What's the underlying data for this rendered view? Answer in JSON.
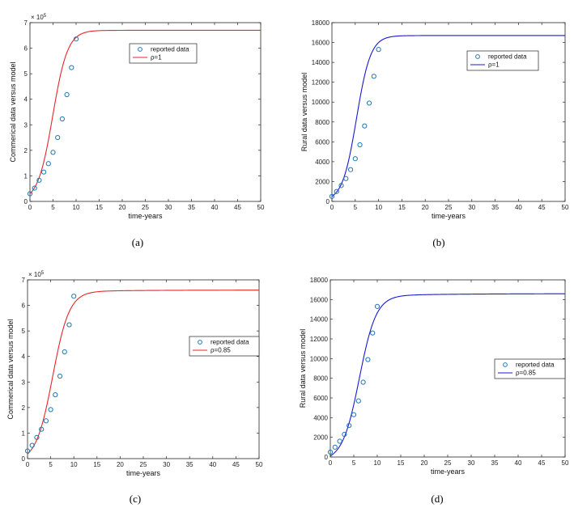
{
  "chart_data": [
    {
      "type": "line",
      "caption": "(a)",
      "xlabel": "time-years",
      "ylabel": "Commerical data versus model",
      "xlim": [
        0,
        50
      ],
      "ylim": [
        0,
        700000
      ],
      "xticks": [
        "0",
        "5",
        "10",
        "15",
        "20",
        "25",
        "30",
        "35",
        "40",
        "45",
        "50"
      ],
      "yticks": [
        "0",
        "1",
        "2",
        "3",
        "4",
        "5",
        "6",
        "7"
      ],
      "y_multiplier": "× 10",
      "y_multiplier_exp": "5",
      "legend_position": "upper-center",
      "series": [
        {
          "name": "reported data",
          "style": "markers",
          "color": "#1f77b4",
          "x": [
            0,
            1,
            2,
            3,
            4,
            5,
            6,
            7,
            8,
            9,
            10
          ],
          "y": [
            30000,
            52000,
            83000,
            115000,
            148000,
            192000,
            250000,
            323000,
            418000,
            524000,
            636000
          ]
        },
        {
          "name": "ρ=1",
          "style": "line",
          "color": "#e8262b",
          "model": {
            "L": 670000,
            "y0": 30000,
            "r": 0.62
          }
        }
      ]
    },
    {
      "type": "line",
      "caption": "(b)",
      "xlabel": "time-years",
      "ylabel": "Rural data versus model",
      "xlim": [
        0,
        50
      ],
      "ylim": [
        0,
        18000
      ],
      "xticks": [
        "0",
        "5",
        "10",
        "15",
        "20",
        "25",
        "30",
        "35",
        "40",
        "45",
        "50"
      ],
      "yticks": [
        "0",
        "2000",
        "4000",
        "6000",
        "8000",
        "10000",
        "12000",
        "14000",
        "16000",
        "18000"
      ],
      "legend_position": "upper-right",
      "series": [
        {
          "name": "reported data",
          "style": "markers",
          "color": "#1f77b4",
          "x": [
            0,
            1,
            2,
            3,
            4,
            5,
            6,
            7,
            8,
            9,
            10
          ],
          "y": [
            500,
            1000,
            1600,
            2300,
            3200,
            4300,
            5700,
            7600,
            9900,
            12600,
            15300
          ]
        },
        {
          "name": "ρ=1",
          "style": "line",
          "color": "#1a1ad6",
          "model": {
            "L": 16700,
            "y0": 500,
            "r": 0.66
          }
        }
      ]
    },
    {
      "type": "line",
      "caption": "(c)",
      "xlabel": "time-years",
      "ylabel": "Commerical data versus model",
      "xlim": [
        0,
        50
      ],
      "ylim": [
        0,
        700000
      ],
      "xticks": [
        "0",
        "5",
        "10",
        "15",
        "20",
        "25",
        "30",
        "35",
        "40",
        "45",
        "50"
      ],
      "yticks": [
        "0",
        "1",
        "2",
        "3",
        "4",
        "5",
        "6",
        "7"
      ],
      "y_multiplier": "× 10",
      "y_multiplier_exp": "5",
      "legend_position": "right",
      "series": [
        {
          "name": "reported data",
          "style": "markers",
          "color": "#1f77b4",
          "x": [
            0,
            1,
            2,
            3,
            4,
            5,
            6,
            7,
            8,
            9,
            10
          ],
          "y": [
            30000,
            52000,
            83000,
            115000,
            148000,
            192000,
            250000,
            323000,
            418000,
            524000,
            636000
          ]
        },
        {
          "name": "ρ=0.85",
          "style": "line",
          "color": "#e8262b",
          "model": {
            "L": 660000,
            "y0": 30000,
            "r": 0.56,
            "creep": 12000,
            "creep_rate": 0.08
          }
        }
      ]
    },
    {
      "type": "line",
      "caption": "(d)",
      "xlabel": "time-years",
      "ylabel": "Rural data versus model",
      "xlim": [
        0,
        50
      ],
      "ylim": [
        0,
        18000
      ],
      "xticks": [
        "0",
        "5",
        "10",
        "15",
        "20",
        "25",
        "30",
        "35",
        "40",
        "45",
        "50"
      ],
      "yticks": [
        "0",
        "2000",
        "4000",
        "6000",
        "8000",
        "10000",
        "12000",
        "14000",
        "16000",
        "18000"
      ],
      "legend_position": "right",
      "series": [
        {
          "name": "reported data",
          "style": "markers",
          "color": "#1f77b4",
          "x": [
            0,
            1,
            2,
            3,
            4,
            5,
            6,
            7,
            8,
            9,
            10
          ],
          "y": [
            500,
            1000,
            1600,
            2300,
            3200,
            4300,
            5700,
            7600,
            9900,
            12600,
            15300
          ]
        },
        {
          "name": "ρ=0.85",
          "style": "line",
          "color": "#1a1ad6",
          "model": {
            "L": 16600,
            "y0": 500,
            "r": 0.56,
            "creep": 400,
            "creep_rate": 0.07
          }
        }
      ]
    }
  ]
}
